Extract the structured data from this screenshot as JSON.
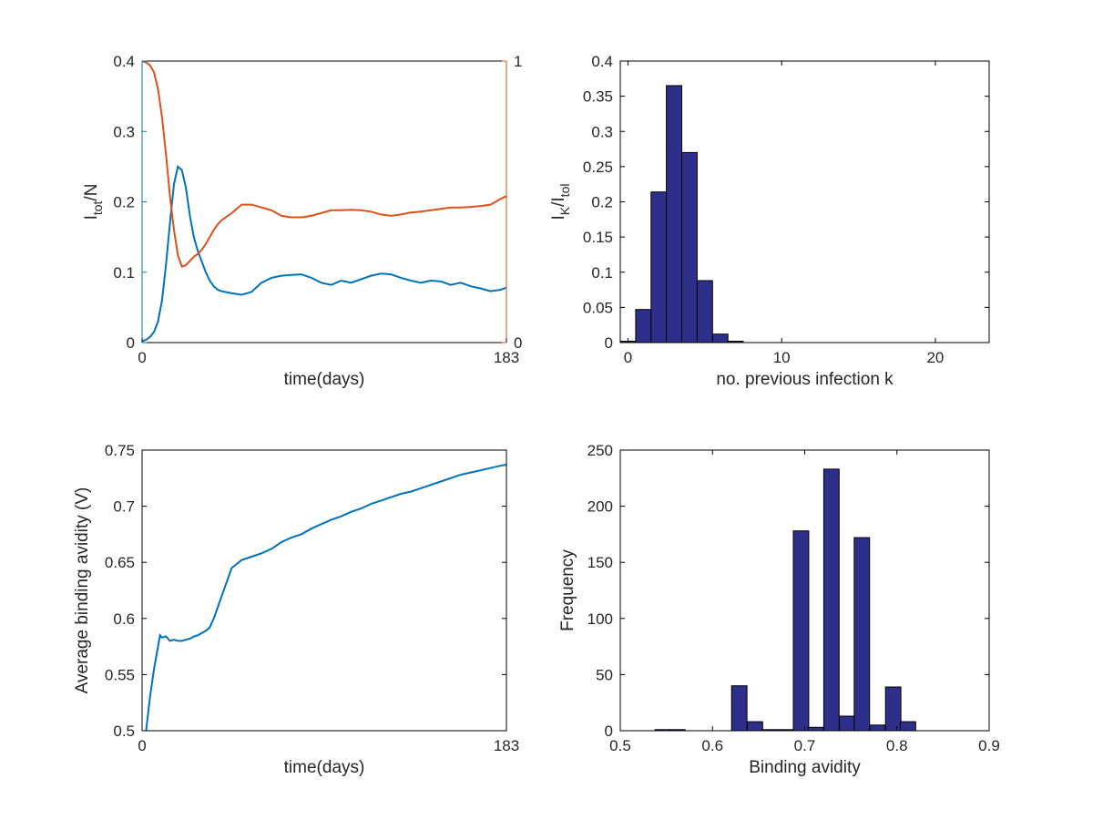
{
  "colors": {
    "blue": "#0072bd",
    "orange": "#d95319",
    "bar_fill": "#2e2e8b",
    "bar_edge": "#000000"
  },
  "chart_data": [
    {
      "id": "infected-over-time",
      "type": "line",
      "xlabel": "time(days)",
      "ylabel_main": "I",
      "ylabel_sub": "tot",
      "ylabel_tail": "/N",
      "xlim": [
        0,
        183
      ],
      "ylim_left": [
        0,
        0.4
      ],
      "ylim_right": [
        0,
        1
      ],
      "x_ticks": [
        0,
        183
      ],
      "y_ticks_left": [
        0,
        0.1,
        0.2,
        0.3,
        0.4
      ],
      "y_tick_labels_left": [
        "0",
        "0.1",
        "0.2",
        "0.3",
        "0.4"
      ],
      "y_ticks_right": [
        0,
        1
      ],
      "y_tick_labels_right": [
        "0",
        "1"
      ],
      "series": [
        {
          "axis": "left",
          "color": "#0072bd",
          "x": [
            0,
            2,
            4,
            6,
            8,
            10,
            12,
            14,
            16,
            18,
            20,
            22,
            24,
            26,
            28,
            30,
            32,
            34,
            36,
            38,
            40,
            45,
            50,
            55,
            60,
            65,
            70,
            75,
            80,
            85,
            90,
            95,
            100,
            105,
            110,
            115,
            120,
            125,
            130,
            135,
            140,
            145,
            150,
            155,
            160,
            165,
            170,
            175,
            180,
            183
          ],
          "y": [
            0.002,
            0.004,
            0.008,
            0.015,
            0.03,
            0.06,
            0.11,
            0.17,
            0.225,
            0.25,
            0.245,
            0.22,
            0.18,
            0.15,
            0.13,
            0.115,
            0.1,
            0.088,
            0.08,
            0.075,
            0.073,
            0.07,
            0.068,
            0.072,
            0.085,
            0.092,
            0.095,
            0.096,
            0.097,
            0.092,
            0.085,
            0.082,
            0.088,
            0.085,
            0.09,
            0.095,
            0.098,
            0.097,
            0.092,
            0.088,
            0.085,
            0.088,
            0.087,
            0.082,
            0.085,
            0.08,
            0.077,
            0.073,
            0.075,
            0.078
          ]
        },
        {
          "axis": "right",
          "color": "#d95319",
          "x": [
            0,
            2,
            4,
            6,
            8,
            10,
            12,
            14,
            16,
            18,
            20,
            22,
            24,
            26,
            28,
            30,
            32,
            34,
            36,
            38,
            40,
            45,
            50,
            55,
            60,
            65,
            70,
            75,
            80,
            85,
            90,
            95,
            100,
            105,
            110,
            115,
            120,
            125,
            130,
            135,
            140,
            145,
            150,
            155,
            160,
            165,
            170,
            175,
            180,
            183
          ],
          "y": [
            1.0,
            0.995,
            0.985,
            0.96,
            0.9,
            0.8,
            0.67,
            0.52,
            0.4,
            0.31,
            0.27,
            0.275,
            0.29,
            0.305,
            0.315,
            0.33,
            0.35,
            0.375,
            0.4,
            0.42,
            0.435,
            0.46,
            0.49,
            0.49,
            0.48,
            0.47,
            0.45,
            0.445,
            0.445,
            0.45,
            0.46,
            0.47,
            0.47,
            0.472,
            0.47,
            0.465,
            0.455,
            0.45,
            0.455,
            0.462,
            0.465,
            0.47,
            0.475,
            0.48,
            0.48,
            0.482,
            0.485,
            0.49,
            0.51,
            0.52
          ]
        }
      ]
    },
    {
      "id": "previous-infection-histogram",
      "type": "bar",
      "xlabel": "no. previous infection k",
      "ylabel_main": "I",
      "ylabel_sub": "K",
      "ylabel_mid": "/I",
      "ylabel_sub2": "tol",
      "xlim": [
        -0.5,
        23.5
      ],
      "ylim": [
        0,
        0.4
      ],
      "bar_width": 1,
      "x_ticks": [
        0,
        10,
        20
      ],
      "x_tick_labels": [
        "0",
        "10",
        "20"
      ],
      "y_ticks": [
        0,
        0.05,
        0.1,
        0.15,
        0.2,
        0.25,
        0.3,
        0.35,
        0.4
      ],
      "y_tick_labels": [
        "0",
        "0.05",
        "0.1",
        "0.15",
        "0.2",
        "0.25",
        "0.3",
        "0.35",
        "0.4"
      ],
      "x": [
        0,
        1,
        2,
        3,
        4,
        5,
        6,
        7
      ],
      "values": [
        0.002,
        0.047,
        0.214,
        0.365,
        0.27,
        0.088,
        0.012,
        0.002
      ]
    },
    {
      "id": "binding-avidity-over-time",
      "type": "line",
      "xlabel": "time(days)",
      "ylabel": "Average binding avidity (V)",
      "xlim": [
        0,
        183
      ],
      "ylim": [
        0.5,
        0.75
      ],
      "x_ticks": [
        0,
        183
      ],
      "y_ticks": [
        0.5,
        0.55,
        0.6,
        0.65,
        0.7,
        0.75
      ],
      "y_tick_labels": [
        "0.5",
        "0.55",
        "0.6",
        "0.65",
        "0.7",
        "0.75"
      ],
      "series": [
        {
          "color": "#0072bd",
          "x": [
            2,
            4,
            6,
            8,
            9,
            10,
            12,
            14,
            16,
            18,
            20,
            22,
            24,
            26,
            28,
            30,
            32,
            34,
            36,
            38,
            40,
            45,
            50,
            55,
            60,
            65,
            70,
            75,
            80,
            85,
            90,
            95,
            100,
            105,
            110,
            115,
            120,
            125,
            130,
            135,
            140,
            145,
            150,
            155,
            160,
            165,
            170,
            175,
            180,
            183
          ],
          "y": [
            0.5,
            0.53,
            0.555,
            0.575,
            0.585,
            0.583,
            0.584,
            0.58,
            0.581,
            0.58,
            0.58,
            0.581,
            0.582,
            0.584,
            0.585,
            0.587,
            0.589,
            0.592,
            0.6,
            0.61,
            0.62,
            0.645,
            0.652,
            0.655,
            0.658,
            0.662,
            0.668,
            0.672,
            0.675,
            0.68,
            0.684,
            0.688,
            0.691,
            0.695,
            0.698,
            0.702,
            0.705,
            0.708,
            0.711,
            0.713,
            0.716,
            0.719,
            0.722,
            0.725,
            0.728,
            0.73,
            0.732,
            0.734,
            0.736,
            0.737
          ]
        }
      ]
    },
    {
      "id": "binding-avidity-histogram",
      "type": "bar",
      "xlabel": "Binding avidity",
      "ylabel": "Frequency",
      "xlim": [
        0.5,
        0.9
      ],
      "ylim": [
        0,
        250
      ],
      "bar_width": 0.0167,
      "x_ticks": [
        0.5,
        0.6,
        0.7,
        0.8,
        0.9
      ],
      "x_tick_labels": [
        "0.5",
        "0.6",
        "0.7",
        "0.8",
        "0.9"
      ],
      "y_ticks": [
        0,
        50,
        100,
        150,
        200,
        250
      ],
      "y_tick_labels": [
        "0",
        "50",
        "100",
        "150",
        "200",
        "250"
      ],
      "x": [
        0.546,
        0.562,
        0.629,
        0.646,
        0.662,
        0.679,
        0.696,
        0.712,
        0.729,
        0.746,
        0.762,
        0.779,
        0.796,
        0.812
      ],
      "values": [
        1,
        1,
        40,
        8,
        1,
        1,
        178,
        3,
        233,
        13,
        172,
        5,
        39,
        8
      ]
    }
  ]
}
